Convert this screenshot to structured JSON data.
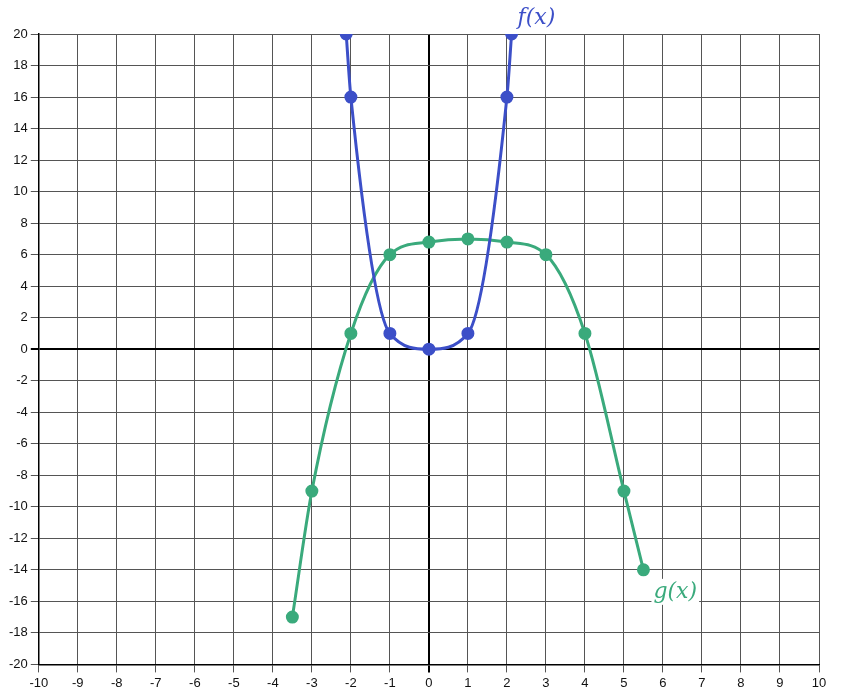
{
  "chart_data": {
    "type": "line",
    "series": [
      {
        "name": "f(x)",
        "color": "#3c4fc8",
        "marker": "circle",
        "line_style": "solid",
        "x": [
          -2.12,
          -2,
          -1,
          0,
          1,
          2,
          2.12
        ],
        "values": [
          20,
          16,
          1,
          0,
          1,
          16,
          20
        ]
      },
      {
        "name": "g(x)",
        "color": "#3aaa7c",
        "marker": "circle",
        "line_style": "solid",
        "x": [
          -3.5,
          -3,
          -2,
          -1,
          0,
          1,
          2,
          3,
          4,
          5,
          5.5
        ],
        "values": [
          -17,
          -9,
          1,
          6,
          6.8,
          7,
          6.8,
          6,
          1,
          -9,
          -14
        ]
      }
    ],
    "xlim": [
      -10,
      10
    ],
    "xticks": [
      -10,
      -9,
      -8,
      -7,
      -6,
      -5,
      -4,
      -3,
      -2,
      -1,
      0,
      1,
      2,
      3,
      4,
      5,
      6,
      7,
      8,
      9,
      10
    ],
    "ylim": [
      -20,
      20
    ],
    "yticks": [
      -20,
      -18,
      -16,
      -14,
      -12,
      -10,
      -8,
      -6,
      -4,
      -2,
      0,
      2,
      4,
      6,
      8,
      10,
      12,
      14,
      16,
      18,
      20
    ],
    "grid": true
  }
}
